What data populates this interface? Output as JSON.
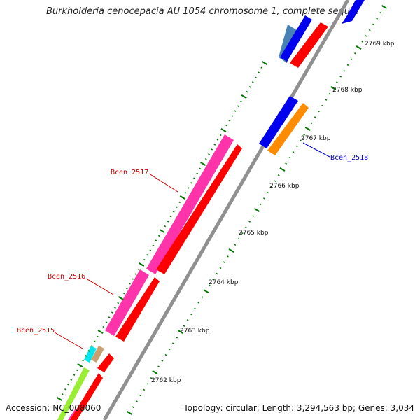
{
  "header": {
    "title": "Burkholderia cenocepacia AU 1054 chromosome 1, complete sequ..."
  },
  "footer": {
    "accession": "Accession: NC_008060",
    "summary": "Topology: circular; Length: 3,294,563 bp; Genes: 3,034"
  },
  "scale": {
    "unit": "kbp",
    "ticks": [
      {
        "value": 2762,
        "label": "2762 kbp"
      },
      {
        "value": 2763,
        "label": "2763 kbp"
      },
      {
        "value": 2764,
        "label": "2764 kbp"
      },
      {
        "value": 2765,
        "label": "2765 kbp"
      },
      {
        "value": 2766,
        "label": "2766 kbp"
      },
      {
        "value": 2767,
        "label": "2767 kbp"
      },
      {
        "value": 2768,
        "label": "2768 kbp"
      },
      {
        "value": 2769,
        "label": "2769 kbp"
      }
    ]
  },
  "genes": [
    {
      "name": "Bcen_2515",
      "color": "#cc0000"
    },
    {
      "name": "Bcen_2516",
      "color": "#cc0000"
    },
    {
      "name": "Bcen_2517",
      "color": "#cc0000"
    },
    {
      "name": "Bcen_2518",
      "color": "#0000cc"
    }
  ],
  "colors": {
    "backbone": "#909090",
    "cds": "#ff0000",
    "gene_pink": "#ff33aa",
    "gene_blue": "#0000ee",
    "gene_orange": "#ff8c00",
    "gene_steelblue": "#4682b4",
    "gene_cyan": "#00e5ee",
    "gene_tan": "#c8a070",
    "gene_lime": "#99ee33",
    "tick_green": "#007700"
  }
}
